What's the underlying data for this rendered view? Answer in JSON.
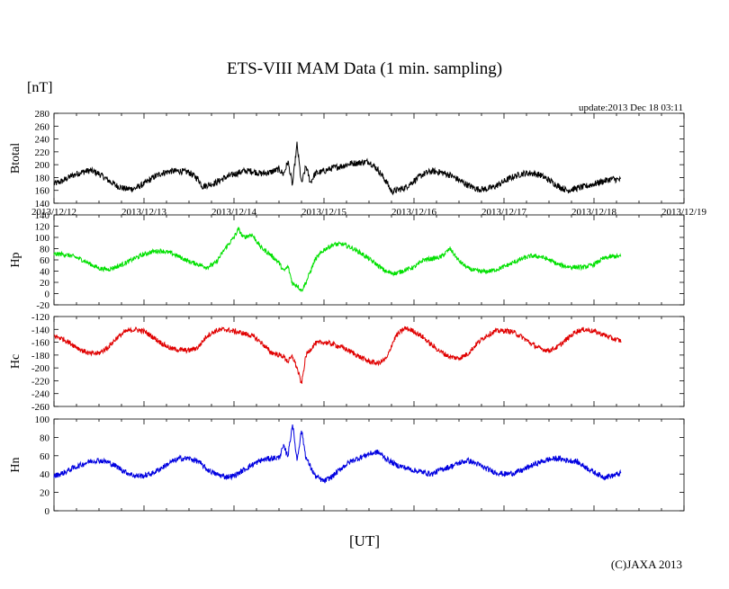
{
  "title": "ETS-VIII MAM Data (1 min. sampling)",
  "unit_label": "[nT]",
  "update_text": "update:2013 Dec 18 03:11",
  "x_axis_label": "[UT]",
  "copyright": "(C)JAXA 2013",
  "chart_data": [
    {
      "type": "line",
      "ylabel": "Btotal",
      "color": "#000000",
      "ylim": [
        140,
        280
      ],
      "yticks": [
        140,
        160,
        180,
        200,
        220,
        240,
        260,
        280
      ],
      "xlim": [
        0,
        7
      ],
      "xtick_labels": [
        "2013/12/12",
        "2013/12/13",
        "2013/12/14",
        "2013/12/15",
        "2013/12/16",
        "2013/12/17",
        "2013/12/18",
        "2013/12/19"
      ],
      "x": [
        0,
        0.1,
        0.2,
        0.3,
        0.4,
        0.5,
        0.6,
        0.7,
        0.8,
        0.9,
        1.0,
        1.1,
        1.2,
        1.3,
        1.4,
        1.5,
        1.6,
        1.65,
        1.7,
        1.8,
        1.9,
        2.0,
        2.1,
        2.2,
        2.3,
        2.4,
        2.5,
        2.55,
        2.6,
        2.65,
        2.7,
        2.75,
        2.8,
        2.85,
        2.9,
        3.0,
        3.1,
        3.2,
        3.3,
        3.4,
        3.5,
        3.6,
        3.7,
        3.75,
        3.8,
        3.9,
        4.0,
        4.1,
        4.2,
        4.3,
        4.4,
        4.5,
        4.6,
        4.7,
        4.8,
        4.9,
        5.0,
        5.1,
        5.2,
        5.3,
        5.4,
        5.5,
        5.6,
        5.7,
        5.8,
        5.9,
        6.0,
        6.1,
        6.2,
        6.3
      ],
      "values": [
        170,
        175,
        183,
        188,
        191,
        186,
        176,
        167,
        162,
        163,
        170,
        180,
        187,
        190,
        190,
        188,
        178,
        166,
        168,
        172,
        180,
        185,
        190,
        190,
        186,
        188,
        193,
        185,
        205,
        168,
        232,
        170,
        198,
        172,
        186,
        190,
        195,
        198,
        202,
        203,
        205,
        192,
        172,
        158,
        160,
        164,
        175,
        185,
        190,
        188,
        184,
        176,
        168,
        162,
        162,
        166,
        174,
        181,
        186,
        187,
        184,
        176,
        167,
        160,
        163,
        166,
        170,
        174,
        178,
        176
      ],
      "noise": 5
    },
    {
      "type": "line",
      "ylabel": "Hp",
      "color": "#00e000",
      "ylim": [
        -20,
        140
      ],
      "yticks": [
        -20,
        0,
        20,
        40,
        60,
        80,
        100,
        120,
        140
      ],
      "xlim": [
        0,
        7
      ],
      "xtick_labels": [],
      "x": [
        0,
        0.1,
        0.2,
        0.3,
        0.4,
        0.5,
        0.6,
        0.7,
        0.8,
        0.9,
        1.0,
        1.1,
        1.2,
        1.3,
        1.4,
        1.5,
        1.6,
        1.7,
        1.8,
        1.9,
        2.0,
        2.05,
        2.1,
        2.2,
        2.3,
        2.4,
        2.5,
        2.55,
        2.6,
        2.65,
        2.7,
        2.75,
        2.8,
        2.9,
        3.0,
        3.1,
        3.2,
        3.3,
        3.4,
        3.5,
        3.6,
        3.7,
        3.8,
        3.9,
        4.0,
        4.05,
        4.1,
        4.2,
        4.3,
        4.4,
        4.5,
        4.6,
        4.7,
        4.8,
        4.9,
        5.0,
        5.1,
        5.2,
        5.3,
        5.4,
        5.5,
        5.6,
        5.7,
        5.8,
        5.9,
        6.0,
        6.1,
        6.2,
        6.3
      ],
      "values": [
        70,
        70,
        67,
        61,
        53,
        45,
        43,
        48,
        55,
        63,
        70,
        75,
        76,
        72,
        65,
        57,
        52,
        47,
        55,
        80,
        100,
        115,
        100,
        105,
        82,
        70,
        55,
        40,
        48,
        18,
        15,
        5,
        20,
        60,
        78,
        87,
        88,
        82,
        73,
        62,
        50,
        38,
        36,
        42,
        47,
        52,
        60,
        62,
        65,
        80,
        58,
        45,
        40,
        39,
        42,
        48,
        55,
        62,
        67,
        66,
        60,
        52,
        48,
        47,
        47,
        52,
        62,
        66,
        66
      ],
      "noise": 4
    },
    {
      "type": "line",
      "ylabel": "Hc",
      "color": "#e00000",
      "ylim": [
        -260,
        -120
      ],
      "yticks": [
        -260,
        -240,
        -220,
        -200,
        -180,
        -160,
        -140,
        -120
      ],
      "xlim": [
        0,
        7
      ],
      "xtick_labels": [],
      "x": [
        0,
        0.1,
        0.2,
        0.3,
        0.4,
        0.5,
        0.6,
        0.7,
        0.8,
        0.9,
        1.0,
        1.1,
        1.2,
        1.3,
        1.4,
        1.5,
        1.6,
        1.7,
        1.8,
        1.9,
        2.0,
        2.1,
        2.2,
        2.3,
        2.4,
        2.5,
        2.55,
        2.6,
        2.65,
        2.7,
        2.75,
        2.8,
        2.9,
        3.0,
        3.1,
        3.2,
        3.3,
        3.4,
        3.5,
        3.6,
        3.7,
        3.75,
        3.8,
        3.9,
        4.0,
        4.1,
        4.2,
        4.3,
        4.4,
        4.5,
        4.6,
        4.7,
        4.8,
        4.9,
        5.0,
        5.1,
        5.2,
        5.3,
        5.4,
        5.5,
        5.6,
        5.7,
        5.8,
        5.9,
        6.0,
        6.1,
        6.2,
        6.3
      ],
      "values": [
        -150,
        -155,
        -163,
        -172,
        -178,
        -177,
        -168,
        -153,
        -143,
        -140,
        -143,
        -152,
        -162,
        -170,
        -172,
        -173,
        -168,
        -150,
        -142,
        -140,
        -143,
        -146,
        -150,
        -160,
        -175,
        -180,
        -182,
        -190,
        -182,
        -200,
        -225,
        -180,
        -162,
        -160,
        -163,
        -168,
        -175,
        -183,
        -190,
        -193,
        -185,
        -165,
        -150,
        -138,
        -143,
        -152,
        -165,
        -175,
        -183,
        -185,
        -178,
        -162,
        -150,
        -143,
        -142,
        -144,
        -152,
        -162,
        -170,
        -173,
        -167,
        -155,
        -143,
        -140,
        -143,
        -148,
        -154,
        -158
      ],
      "noise": 4
    },
    {
      "type": "line",
      "ylabel": "Hn",
      "color": "#0000e0",
      "ylim": [
        0,
        100
      ],
      "yticks": [
        0,
        20,
        40,
        60,
        80,
        100
      ],
      "xlim": [
        0,
        7
      ],
      "xtick_labels": [],
      "x": [
        0,
        0.1,
        0.2,
        0.3,
        0.4,
        0.5,
        0.6,
        0.7,
        0.8,
        0.9,
        1.0,
        1.1,
        1.2,
        1.3,
        1.4,
        1.5,
        1.6,
        1.7,
        1.8,
        1.9,
        2.0,
        2.1,
        2.2,
        2.3,
        2.4,
        2.5,
        2.55,
        2.6,
        2.65,
        2.7,
        2.75,
        2.8,
        2.9,
        3.0,
        3.1,
        3.2,
        3.3,
        3.4,
        3.5,
        3.6,
        3.7,
        3.8,
        3.9,
        4.0,
        4.1,
        4.2,
        4.3,
        4.4,
        4.5,
        4.6,
        4.7,
        4.8,
        4.9,
        5.0,
        5.1,
        5.2,
        5.3,
        5.4,
        5.5,
        5.6,
        5.7,
        5.8,
        5.9,
        6.0,
        6.1,
        6.2,
        6.3
      ],
      "values": [
        38,
        41,
        46,
        50,
        54,
        55,
        53,
        48,
        42,
        38,
        38,
        41,
        47,
        53,
        57,
        57,
        54,
        45,
        40,
        37,
        38,
        44,
        50,
        55,
        57,
        58,
        70,
        60,
        95,
        55,
        88,
        58,
        38,
        32,
        38,
        47,
        54,
        58,
        62,
        64,
        56,
        50,
        47,
        44,
        42,
        40,
        45,
        48,
        52,
        55,
        51,
        46,
        42,
        40,
        41,
        44,
        49,
        53,
        56,
        57,
        55,
        54,
        48,
        42,
        37,
        38,
        41
      ],
      "noise": 3
    }
  ]
}
